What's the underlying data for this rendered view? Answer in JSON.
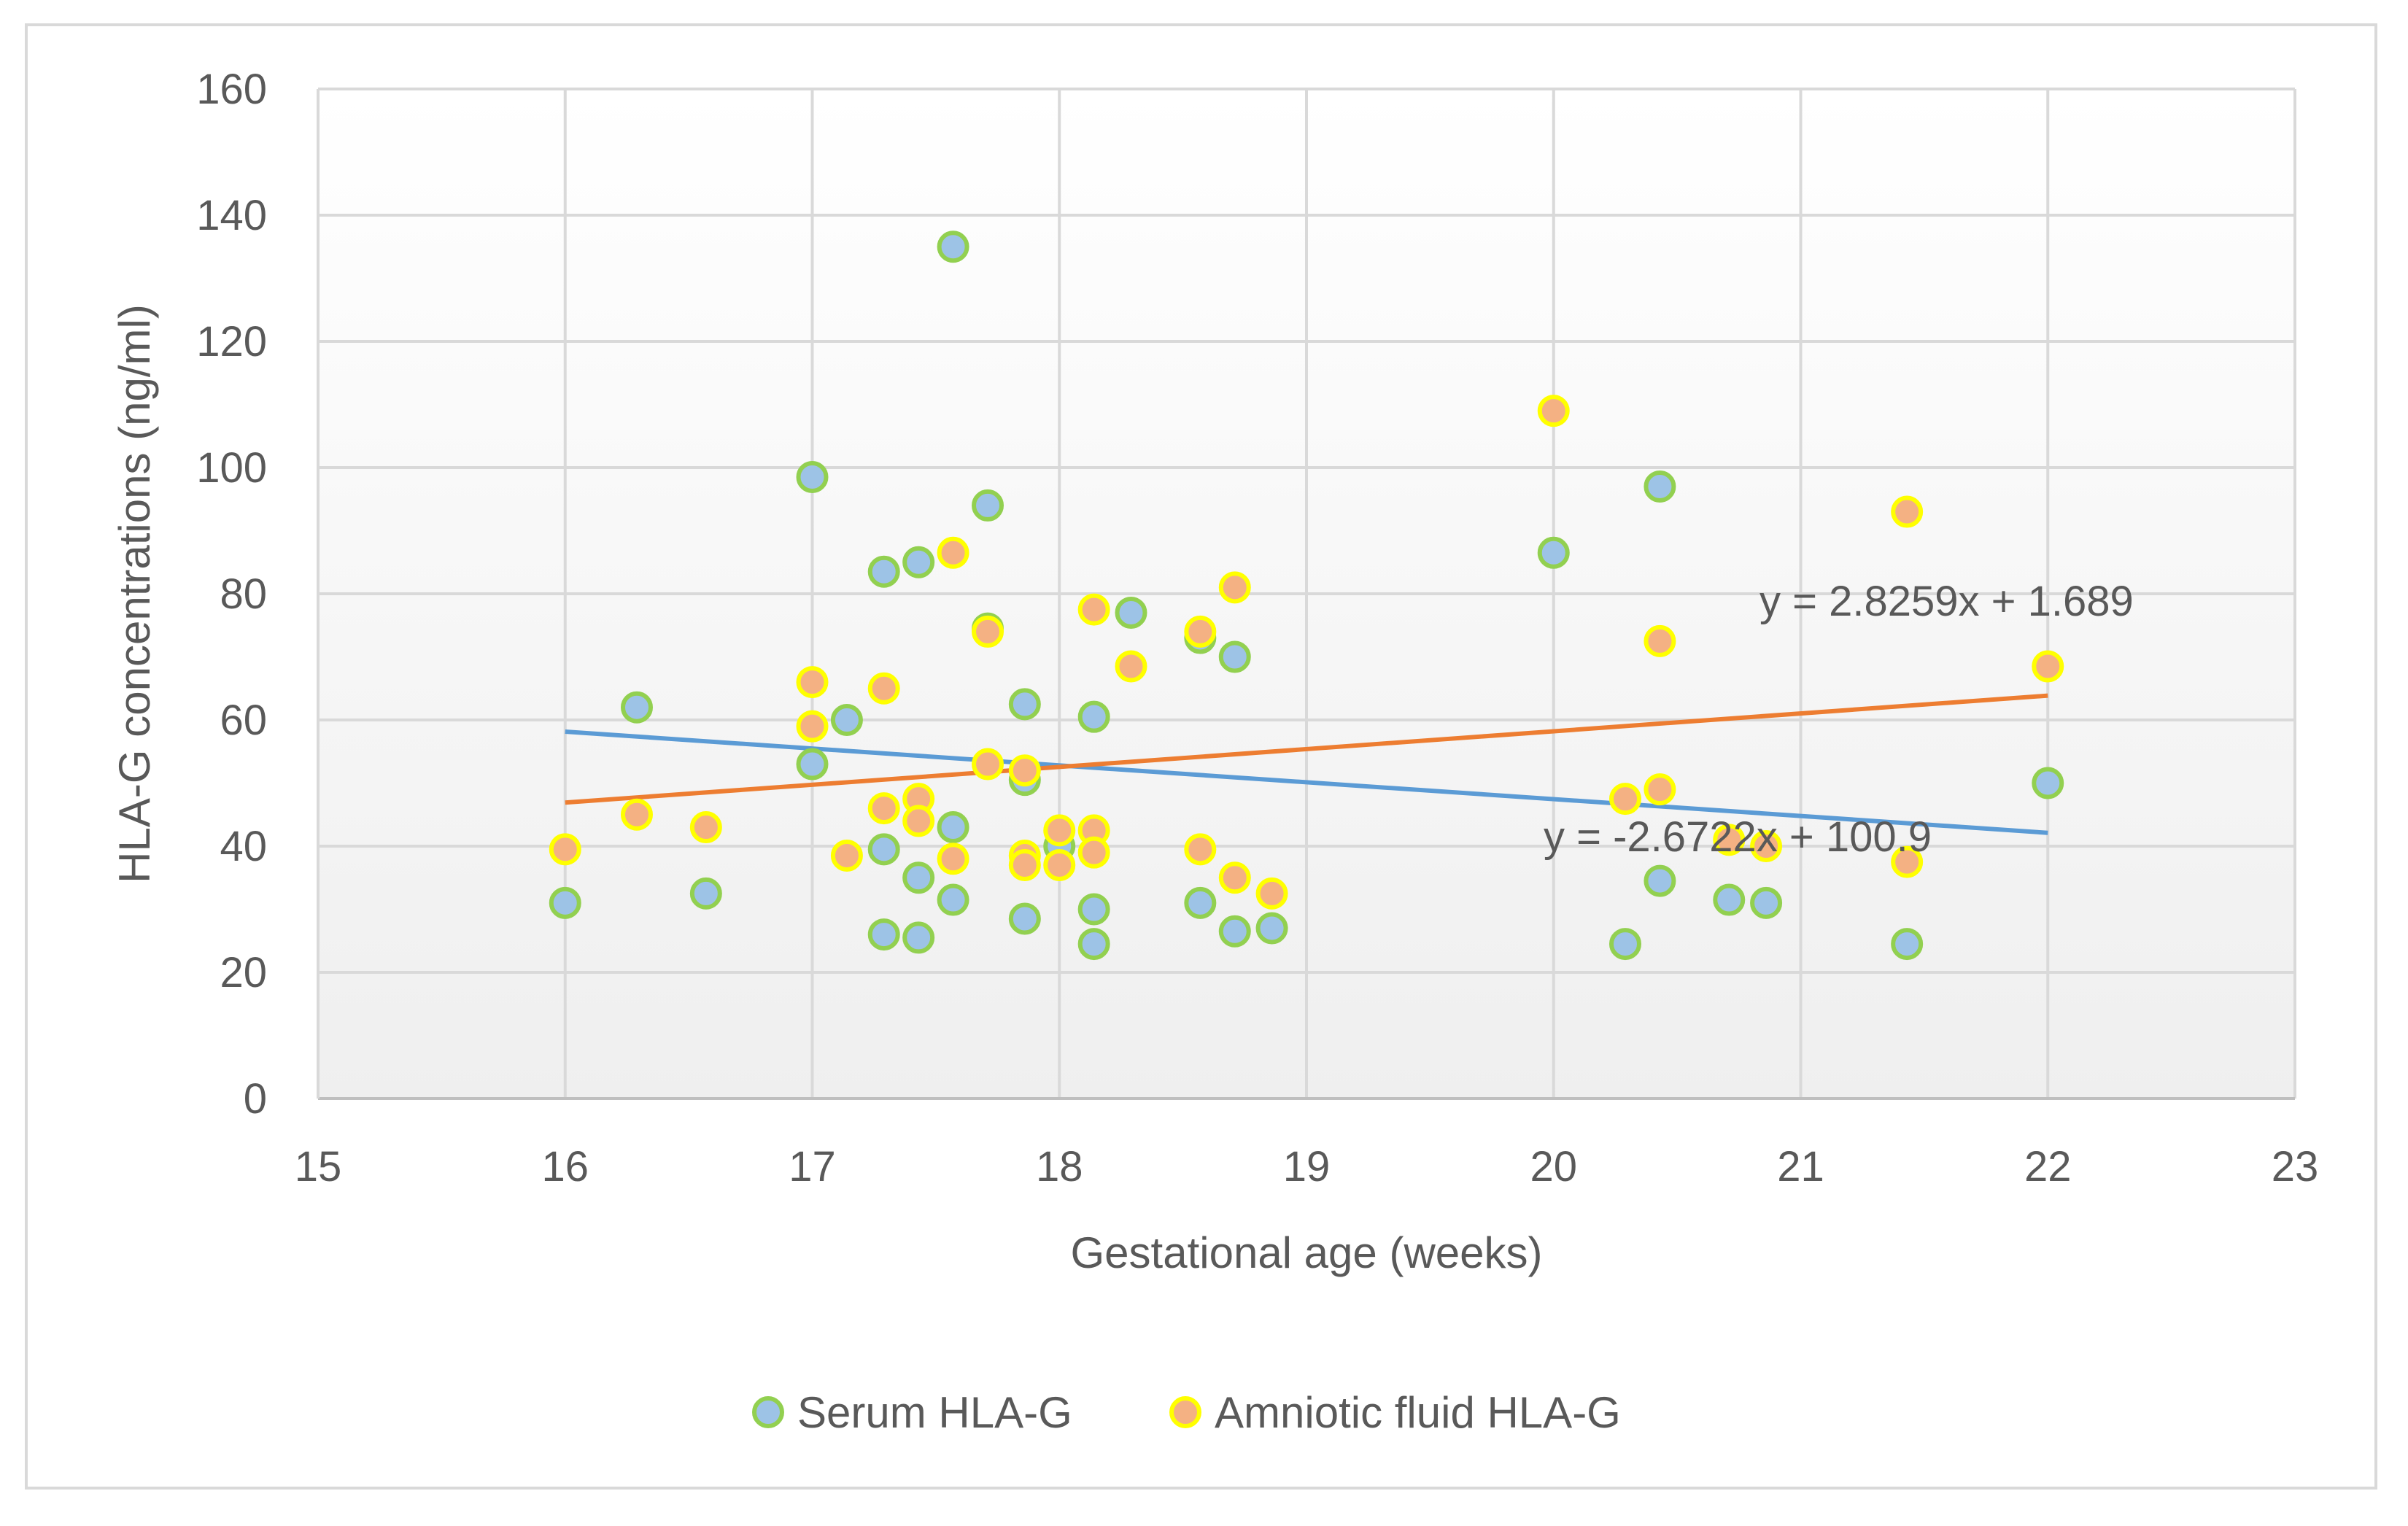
{
  "chart_data": {
    "type": "scatter",
    "xlabel": "Gestational age (weeks)",
    "ylabel": "HLA-G concentrations (ng/ml)",
    "xlim": [
      15,
      23
    ],
    "ylim": [
      0,
      160
    ],
    "x_ticks": [
      "15",
      "16",
      "17",
      "18",
      "19",
      "20",
      "21",
      "22",
      "23"
    ],
    "y_ticks": [
      "0",
      "20",
      "40",
      "60",
      "80",
      "100",
      "120",
      "140",
      "160"
    ],
    "grid": true,
    "legend_position": "bottom",
    "series": [
      {
        "name": "Serum HLA-G",
        "fill": "#9dc3e6",
        "stroke": "#92d050",
        "points": [
          [
            16.0,
            31
          ],
          [
            16.29,
            62
          ],
          [
            16.57,
            32.5
          ],
          [
            17.0,
            98.5
          ],
          [
            17.0,
            53
          ],
          [
            17.14,
            60
          ],
          [
            17.29,
            83.5
          ],
          [
            17.29,
            39.5
          ],
          [
            17.29,
            26
          ],
          [
            17.43,
            85
          ],
          [
            17.43,
            35
          ],
          [
            17.43,
            25.5
          ],
          [
            17.57,
            135
          ],
          [
            17.57,
            43
          ],
          [
            17.57,
            31.5
          ],
          [
            17.71,
            94
          ],
          [
            17.71,
            74.5
          ],
          [
            17.86,
            62.5
          ],
          [
            17.86,
            50.5
          ],
          [
            17.86,
            28.5
          ],
          [
            18.0,
            40
          ],
          [
            18.14,
            60.5
          ],
          [
            18.14,
            30
          ],
          [
            18.14,
            24.5
          ],
          [
            18.29,
            77
          ],
          [
            18.57,
            73
          ],
          [
            18.57,
            31
          ],
          [
            18.71,
            70
          ],
          [
            18.71,
            26.5
          ],
          [
            18.86,
            27
          ],
          [
            20.0,
            86.5
          ],
          [
            20.29,
            24.5
          ],
          [
            20.43,
            97
          ],
          [
            20.43,
            34.5
          ],
          [
            20.71,
            31.5
          ],
          [
            20.86,
            31
          ],
          [
            21.43,
            24.5
          ],
          [
            22.0,
            50
          ]
        ],
        "trend": {
          "slope": -2.6722,
          "intercept": 100.9,
          "x_from": 16,
          "x_to": 22,
          "color": "#5b9bd5",
          "label": "y = -2.6722x + 100.9"
        }
      },
      {
        "name": "Amniotic fluid HLA-G",
        "fill": "#f4b183",
        "stroke": "#ffff00",
        "points": [
          [
            16.0,
            39.5
          ],
          [
            16.29,
            45
          ],
          [
            16.57,
            43
          ],
          [
            17.0,
            66
          ],
          [
            17.0,
            59
          ],
          [
            17.14,
            38.5
          ],
          [
            17.29,
            65
          ],
          [
            17.29,
            46
          ],
          [
            17.43,
            47.5
          ],
          [
            17.43,
            44
          ],
          [
            17.57,
            86.5
          ],
          [
            17.57,
            38
          ],
          [
            17.71,
            74
          ],
          [
            17.71,
            53
          ],
          [
            17.86,
            52
          ],
          [
            17.86,
            38.5
          ],
          [
            17.86,
            37
          ],
          [
            18.0,
            42.5
          ],
          [
            18.0,
            37
          ],
          [
            18.14,
            77.5
          ],
          [
            18.14,
            42.5
          ],
          [
            18.14,
            39
          ],
          [
            18.29,
            68.5
          ],
          [
            18.57,
            74
          ],
          [
            18.57,
            39.5
          ],
          [
            18.71,
            81
          ],
          [
            18.71,
            35
          ],
          [
            18.86,
            32.5
          ],
          [
            20.0,
            109
          ],
          [
            20.29,
            47.5
          ],
          [
            20.43,
            72.5
          ],
          [
            20.43,
            49
          ],
          [
            20.71,
            41
          ],
          [
            20.86,
            40
          ],
          [
            21.43,
            93
          ],
          [
            21.43,
            37.5
          ],
          [
            22.0,
            68.5
          ]
        ],
        "trend": {
          "slope": 2.8259,
          "intercept": 1.689,
          "x_from": 16,
          "x_to": 22,
          "color": "#ed7d31",
          "label": "y = 2.8259x + 1.689"
        }
      }
    ]
  }
}
